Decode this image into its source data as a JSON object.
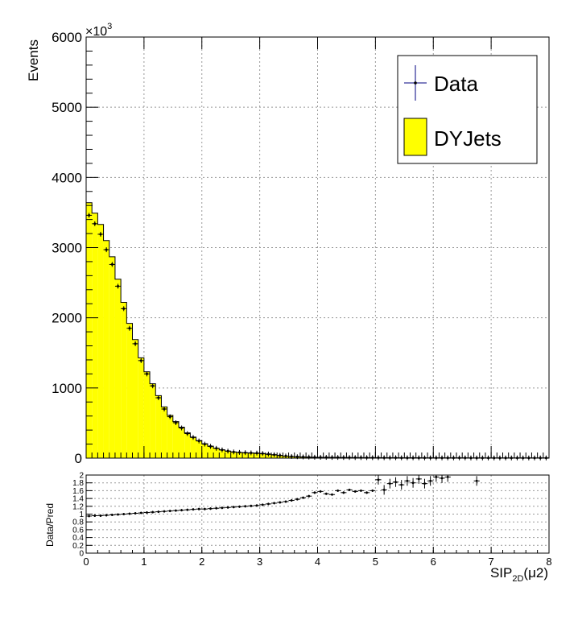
{
  "chart_data": [
    {
      "type": "bar",
      "panel": "main",
      "ylabel": "Events",
      "y_multiplier": "×10",
      "y_multiplier_exp": "3",
      "yticks": [
        "0",
        "1000",
        "2000",
        "3000",
        "4000",
        "5000",
        "6000"
      ],
      "ylim": [
        0,
        6000
      ],
      "xlim": [
        0,
        8
      ],
      "grid": true,
      "legend_position": "top-right",
      "bin_width": 0.1,
      "x_bin_start": 0,
      "series": [
        {
          "name": "DYJets",
          "kind": "filled-histogram",
          "color": "#ffff00",
          "values": [
            3640,
            3490,
            3330,
            3100,
            2870,
            2550,
            2220,
            1920,
            1690,
            1430,
            1230,
            1060,
            890,
            730,
            610,
            520,
            440,
            360,
            300,
            250,
            205,
            170,
            140,
            118,
            100,
            88,
            80,
            75,
            72,
            68,
            62,
            55,
            46,
            36,
            28,
            22,
            18,
            15,
            13,
            11,
            10,
            9,
            8,
            8,
            7,
            7,
            6,
            6,
            5,
            5,
            5,
            4,
            4,
            4,
            3,
            3,
            3,
            3,
            2,
            2,
            2,
            2,
            2,
            2,
            2,
            2,
            1,
            1,
            1,
            1,
            1,
            1,
            1,
            1,
            1,
            1,
            1,
            1,
            1,
            1
          ]
        },
        {
          "name": "Data",
          "kind": "points-with-errors",
          "color": "#000080",
          "values": [
            3460,
            3340,
            3190,
            2970,
            2760,
            2450,
            2130,
            1850,
            1630,
            1390,
            1200,
            1030,
            860,
            700,
            590,
            505,
            430,
            350,
            295,
            245,
            200,
            168,
            140,
            118,
            100,
            88,
            82,
            78,
            75,
            72,
            66,
            58,
            49,
            39,
            30,
            24,
            20,
            17,
            15,
            13,
            12,
            11,
            10,
            10,
            9,
            9,
            8,
            8,
            7,
            7,
            7,
            6,
            6,
            6,
            5,
            5,
            5,
            5,
            4,
            4,
            4,
            4,
            4,
            4,
            4,
            4,
            3,
            3,
            3,
            3,
            3,
            3,
            3,
            3,
            3,
            3,
            3,
            3,
            3,
            3
          ]
        }
      ]
    },
    {
      "type": "scatter",
      "panel": "ratio",
      "xlabel_main": "SIP",
      "xlabel_sub": "2D",
      "xlabel_tail": "(μ2)",
      "ylabel": "Data/Pred",
      "xticks": [
        "0",
        "1",
        "2",
        "3",
        "4",
        "5",
        "6",
        "7",
        "8"
      ],
      "yticks": [
        "0",
        "0.2",
        "0.4",
        "0.6",
        "0.8",
        "1",
        "1.2",
        "1.4",
        "1.6",
        "1.8",
        "2"
      ],
      "xlim": [
        0,
        8
      ],
      "ylim": [
        0,
        2
      ],
      "grid": true,
      "x": [
        0.05,
        0.15,
        0.25,
        0.35,
        0.45,
        0.55,
        0.65,
        0.75,
        0.85,
        0.95,
        1.05,
        1.15,
        1.25,
        1.35,
        1.45,
        1.55,
        1.65,
        1.75,
        1.85,
        1.95,
        2.05,
        2.15,
        2.25,
        2.35,
        2.45,
        2.55,
        2.65,
        2.75,
        2.85,
        2.95,
        3.05,
        3.15,
        3.25,
        3.35,
        3.45,
        3.55,
        3.65,
        3.75,
        3.85,
        3.95,
        4.05,
        4.15,
        4.25,
        4.35,
        4.45,
        4.55,
        4.65,
        4.75,
        4.85,
        4.95,
        5.05,
        5.15,
        5.25,
        5.35,
        5.45,
        5.55,
        5.65,
        5.75,
        5.85,
        5.95,
        6.05,
        6.15,
        6.25,
        6.75
      ],
      "y": [
        0.95,
        0.96,
        0.96,
        0.97,
        0.98,
        0.99,
        1.0,
        1.01,
        1.02,
        1.03,
        1.04,
        1.05,
        1.06,
        1.07,
        1.08,
        1.09,
        1.1,
        1.11,
        1.12,
        1.13,
        1.13,
        1.14,
        1.15,
        1.16,
        1.17,
        1.18,
        1.19,
        1.2,
        1.21,
        1.22,
        1.24,
        1.26,
        1.28,
        1.3,
        1.32,
        1.35,
        1.38,
        1.42,
        1.46,
        1.55,
        1.58,
        1.52,
        1.5,
        1.6,
        1.55,
        1.62,
        1.58,
        1.6,
        1.55,
        1.6,
        1.88,
        1.62,
        1.78,
        1.82,
        1.75,
        1.85,
        1.8,
        1.9,
        1.78,
        1.85,
        1.95,
        1.92,
        1.95,
        1.85
      ]
    }
  ]
}
